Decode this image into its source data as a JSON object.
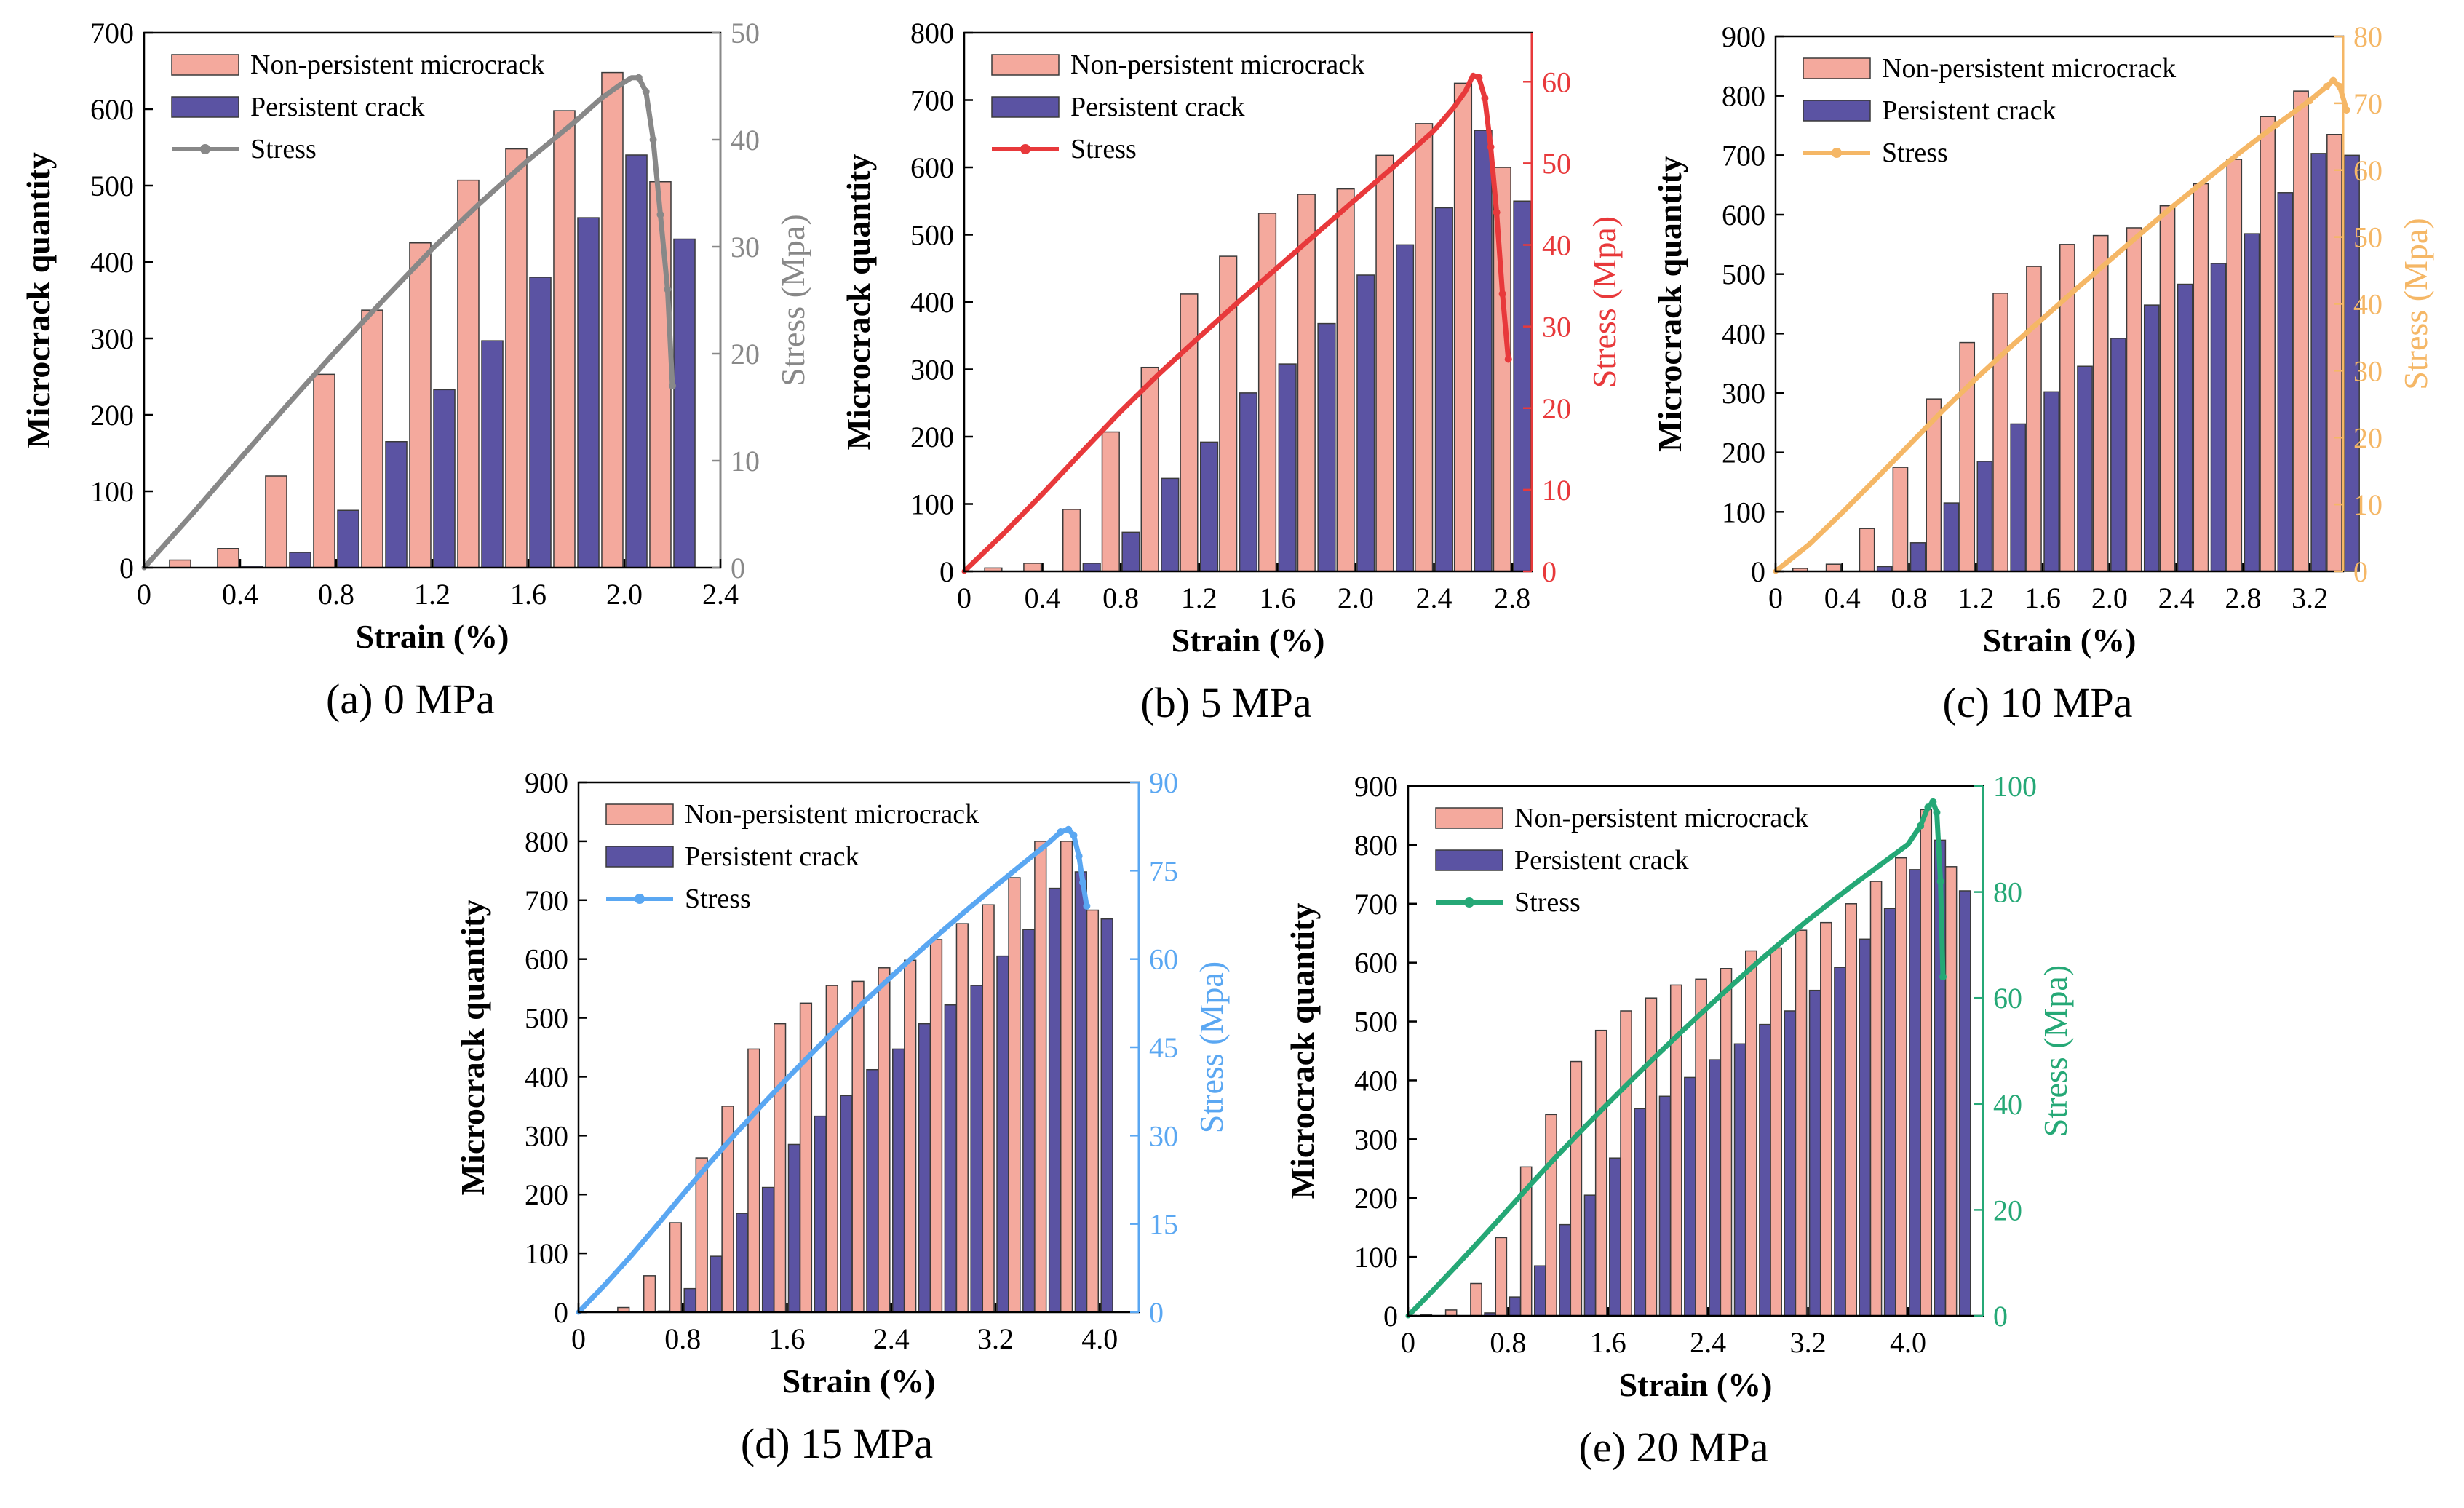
{
  "chart_data": [
    {
      "type": "bar",
      "caption": "(a) 0 MPa",
      "xlabel": "Strain (%)",
      "ylabel": "Microcrack quantity",
      "y2label": "Stress (Mpa)",
      "xlim": [
        0,
        2.4
      ],
      "ylim": [
        0,
        700
      ],
      "y2lim": [
        0,
        50
      ],
      "xticks": [
        0,
        0.4,
        0.8,
        1.2,
        1.6,
        2.0,
        2.4
      ],
      "xtick_labels": [
        "0",
        "0.4",
        "0.8",
        "1.2",
        "1.6",
        "2.0",
        "2.4"
      ],
      "yticks": [
        0,
        100,
        200,
        300,
        400,
        500,
        600,
        700
      ],
      "y2ticks": [
        0,
        10,
        20,
        30,
        40,
        50
      ],
      "stress_color": "#888888",
      "legend": [
        "Non-persistent microcrack",
        "Persistent crack",
        "Stress"
      ],
      "categories": [
        0.2,
        0.4,
        0.6,
        0.8,
        1.0,
        1.2,
        1.4,
        1.6,
        1.8,
        2.0,
        2.2
      ],
      "series": [
        {
          "name": "Non-persistent microcrack",
          "values": [
            10,
            25,
            120,
            253,
            337,
            425,
            507,
            548,
            598,
            648,
            505
          ]
        },
        {
          "name": "Persistent crack",
          "values": [
            0,
            2,
            20,
            75,
            165,
            233,
            297,
            380,
            458,
            540,
            430
          ]
        }
      ],
      "stress": {
        "x": [
          0,
          0.2,
          0.4,
          0.6,
          0.8,
          1.0,
          1.2,
          1.4,
          1.6,
          1.8,
          1.9,
          1.98,
          2.03,
          2.06,
          2.09,
          2.12,
          2.15,
          2.18,
          2.2
        ],
        "y": [
          0,
          5.0,
          10.2,
          15.3,
          20.3,
          25.1,
          29.8,
          34.1,
          38.1,
          41.8,
          43.8,
          45.1,
          45.8,
          45.8,
          44.5,
          40.0,
          33.0,
          26.0,
          17.0
        ]
      }
    },
    {
      "type": "bar",
      "caption": "(b)  5 MPa",
      "xlabel": "Strain (%)",
      "ylabel": "Microcrack quantity",
      "y2label": "Stress (Mpa)",
      "xlim": [
        0,
        2.9
      ],
      "ylim": [
        0,
        800
      ],
      "y2lim": [
        0,
        66
      ],
      "xticks": [
        0,
        0.4,
        0.8,
        1.2,
        1.6,
        2.0,
        2.4,
        2.8
      ],
      "xtick_labels": [
        "0",
        "0.4",
        "0.8",
        "1.2",
        "1.6",
        "2.0",
        "2.4",
        "2.8"
      ],
      "yticks": [
        0,
        100,
        200,
        300,
        400,
        500,
        600,
        700,
        800
      ],
      "y2ticks": [
        0,
        10,
        20,
        30,
        40,
        50,
        60
      ],
      "stress_color": "#e8393b",
      "legend": [
        "Non-persistent microcrack",
        "Persistent crack",
        "Stress"
      ],
      "categories": [
        0.2,
        0.4,
        0.6,
        0.8,
        1.0,
        1.2,
        1.4,
        1.6,
        1.8,
        2.0,
        2.2,
        2.4,
        2.6,
        2.8
      ],
      "series": [
        {
          "name": "Non-persistent microcrack",
          "values": [
            5,
            12,
            92,
            207,
            303,
            412,
            468,
            532,
            560,
            568,
            618,
            665,
            725,
            600
          ]
        },
        {
          "name": "Persistent crack",
          "values": [
            0,
            0,
            12,
            58,
            138,
            192,
            265,
            308,
            368,
            440,
            485,
            540,
            655,
            550
          ]
        }
      ],
      "stress": {
        "x": [
          0,
          0.2,
          0.4,
          0.6,
          0.8,
          1.0,
          1.2,
          1.4,
          1.6,
          1.8,
          2.0,
          2.2,
          2.4,
          2.5,
          2.56,
          2.6,
          2.63,
          2.66,
          2.69,
          2.72,
          2.75,
          2.78
        ],
        "y": [
          0,
          4.6,
          9.5,
          14.6,
          19.6,
          24.3,
          28.7,
          33.0,
          37.2,
          41.4,
          45.6,
          49.7,
          54.0,
          56.8,
          58.8,
          60.8,
          60.5,
          58.0,
          52.0,
          44.0,
          34.0,
          26.0
        ]
      }
    },
    {
      "type": "bar",
      "caption": "(c) 10 MPa",
      "xlabel": "Strain (%)",
      "ylabel": "Microcrack quantity",
      "y2label": "Stress (Mpa)",
      "xlim": [
        0,
        3.4
      ],
      "ylim": [
        0,
        900
      ],
      "y2lim": [
        0,
        80
      ],
      "xticks": [
        0,
        0.4,
        0.8,
        1.2,
        1.6,
        2.0,
        2.4,
        2.8,
        3.2
      ],
      "xtick_labels": [
        "0",
        "0.4",
        "0.8",
        "1.2",
        "1.6",
        "2.0",
        "2.4",
        "2.8",
        "3.2"
      ],
      "yticks": [
        0,
        100,
        200,
        300,
        400,
        500,
        600,
        700,
        800,
        900
      ],
      "y2ticks": [
        0,
        10,
        20,
        30,
        40,
        50,
        60,
        70,
        80
      ],
      "stress_color": "#f5b766",
      "legend": [
        "Non-persistent microcrack",
        "Persistent crack",
        "Stress"
      ],
      "categories": [
        0.2,
        0.4,
        0.6,
        0.8,
        1.0,
        1.2,
        1.4,
        1.6,
        1.8,
        2.0,
        2.2,
        2.4,
        2.6,
        2.8,
        3.0,
        3.2,
        3.4
      ],
      "series": [
        {
          "name": "Non-persistent microcrack",
          "values": [
            5,
            12,
            72,
            175,
            290,
            385,
            468,
            513,
            550,
            565,
            578,
            615,
            652,
            693,
            765,
            808,
            735
          ]
        },
        {
          "name": "Persistent crack",
          "values": [
            0,
            0,
            8,
            48,
            115,
            185,
            248,
            302,
            345,
            392,
            448,
            483,
            518,
            568,
            637,
            703,
            700
          ]
        }
      ],
      "stress": {
        "x": [
          0,
          0.2,
          0.4,
          0.6,
          0.8,
          1.0,
          1.2,
          1.4,
          1.6,
          1.8,
          2.0,
          2.2,
          2.4,
          2.6,
          2.8,
          3.0,
          3.2,
          3.3,
          3.34,
          3.38,
          3.42
        ],
        "y": [
          0,
          4.0,
          8.8,
          13.8,
          18.9,
          24.0,
          28.8,
          33.4,
          37.8,
          42.2,
          46.5,
          50.8,
          55.0,
          59.0,
          63.0,
          66.8,
          70.4,
          72.5,
          73.4,
          72.5,
          69.0
        ]
      }
    },
    {
      "type": "bar",
      "caption": "(d) 15 MPa",
      "xlabel": "Strain (%)",
      "ylabel": "Microcrack quantity",
      "y2label": "Stress (Mpa)",
      "xlim": [
        0,
        4.3
      ],
      "ylim": [
        0,
        900
      ],
      "y2lim": [
        0,
        90
      ],
      "xticks": [
        0,
        0.8,
        1.6,
        2.4,
        3.2,
        4.0
      ],
      "xtick_labels": [
        "0",
        "0.8",
        "1.6",
        "2.4",
        "3.2",
        "4.0"
      ],
      "yticks": [
        0,
        100,
        200,
        300,
        400,
        500,
        600,
        700,
        800,
        900
      ],
      "y2ticks": [
        0,
        15,
        30,
        45,
        60,
        75,
        90
      ],
      "stress_color": "#5aa7f2",
      "legend": [
        "Non-persistent microcrack",
        "Persistent crack",
        "Stress"
      ],
      "categories": [
        0.2,
        0.4,
        0.6,
        0.8,
        1.0,
        1.2,
        1.4,
        1.6,
        1.8,
        2.0,
        2.2,
        2.4,
        2.6,
        2.8,
        3.0,
        3.2,
        3.4,
        3.6,
        3.8,
        4.0
      ],
      "series": [
        {
          "name": "Non-persistent microcrack",
          "values": [
            0,
            8,
            62,
            152,
            262,
            350,
            447,
            490,
            525,
            555,
            562,
            585,
            598,
            633,
            660,
            692,
            738,
            800,
            800,
            683
          ]
        },
        {
          "name": "Persistent crack",
          "values": [
            0,
            0,
            2,
            40,
            95,
            168,
            212,
            285,
            333,
            368,
            412,
            447,
            490,
            522,
            555,
            605,
            650,
            720,
            748,
            668
          ]
        }
      ],
      "stress": {
        "x": [
          0,
          0.2,
          0.4,
          0.6,
          0.8,
          1.0,
          1.2,
          1.4,
          1.6,
          1.8,
          2.0,
          2.2,
          2.4,
          2.6,
          2.8,
          3.0,
          3.2,
          3.4,
          3.6,
          3.7,
          3.76,
          3.8,
          3.84,
          3.87,
          3.9
        ],
        "y": [
          0,
          4.6,
          9.5,
          14.7,
          20.0,
          25.2,
          30.2,
          35.0,
          39.7,
          44.2,
          48.6,
          52.9,
          57.0,
          61.0,
          64.9,
          68.7,
          72.4,
          76.0,
          79.6,
          81.6,
          82.0,
          81.0,
          77.5,
          73.0,
          69.0
        ]
      }
    },
    {
      "type": "bar",
      "caption": "(e) 20 MPa",
      "xlabel": "Strain (%)",
      "ylabel": "Microcrack quantity",
      "y2label": "Stress (Mpa)",
      "xlim": [
        0,
        4.6
      ],
      "ylim": [
        0,
        900
      ],
      "y2lim": [
        0,
        100
      ],
      "xticks": [
        0,
        0.8,
        1.6,
        2.4,
        3.2,
        4.0
      ],
      "xtick_labels": [
        "0",
        "0.8",
        "1.6",
        "2.4",
        "3.2",
        "4.0"
      ],
      "yticks": [
        0,
        100,
        200,
        300,
        400,
        500,
        600,
        700,
        800,
        900
      ],
      "y2ticks": [
        0,
        20,
        40,
        60,
        80,
        100
      ],
      "stress_color": "#25a876",
      "legend": [
        "Non-persistent microcrack",
        "Persistent crack",
        "Stress"
      ],
      "categories": [
        0.2,
        0.4,
        0.6,
        0.8,
        1.0,
        1.2,
        1.4,
        1.6,
        1.8,
        2.0,
        2.2,
        2.4,
        2.6,
        2.8,
        3.0,
        3.2,
        3.4,
        3.6,
        3.8,
        4.0,
        4.2,
        4.4
      ],
      "series": [
        {
          "name": "Non-persistent microcrack",
          "values": [
            2,
            10,
            55,
            133,
            253,
            342,
            432,
            485,
            518,
            540,
            562,
            572,
            590,
            620,
            625,
            655,
            668,
            700,
            738,
            778,
            860,
            763
          ]
        },
        {
          "name": "Persistent crack",
          "values": [
            0,
            0,
            5,
            32,
            85,
            155,
            205,
            268,
            352,
            373,
            405,
            435,
            462,
            495,
            518,
            553,
            592,
            640,
            692,
            758,
            808,
            722
          ]
        }
      ],
      "stress": {
        "x": [
          0,
          0.2,
          0.4,
          0.6,
          0.8,
          1.0,
          1.2,
          1.4,
          1.6,
          1.8,
          2.0,
          2.2,
          2.4,
          2.6,
          2.8,
          3.0,
          3.2,
          3.4,
          3.6,
          3.8,
          4.0,
          4.1,
          4.16,
          4.2,
          4.23,
          4.26,
          4.28
        ],
        "y": [
          0,
          4.8,
          9.8,
          14.9,
          20.1,
          25.3,
          30.4,
          35.3,
          40.1,
          44.8,
          49.4,
          53.9,
          58.3,
          62.6,
          66.8,
          70.8,
          74.7,
          78.4,
          82.0,
          85.5,
          89.0,
          92.5,
          96.0,
          97.0,
          95.0,
          82.0,
          64.0
        ]
      }
    }
  ]
}
